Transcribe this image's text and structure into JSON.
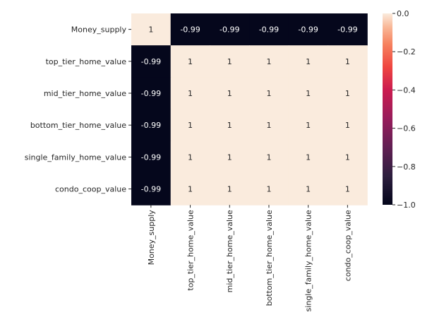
{
  "chart_data": {
    "type": "heatmap",
    "title": "",
    "xlabel": "",
    "ylabel": "",
    "row_labels": [
      "Money_supply",
      "top_tier_home_value",
      "mid_tier_home_value",
      "bottom_tier_home_value",
      "single_family_home_value",
      "condo_coop_value"
    ],
    "col_labels": [
      "Money_supply",
      "top_tier_home_value",
      "mid_tier_home_value",
      "bottom_tier_home_value",
      "single_family_home_value",
      "condo_coop_value"
    ],
    "values": [
      [
        1,
        -0.99,
        -0.99,
        -0.99,
        -0.99,
        -0.99
      ],
      [
        -0.99,
        1,
        1,
        1,
        1,
        1
      ],
      [
        -0.99,
        1,
        1,
        1,
        1,
        1
      ],
      [
        -0.99,
        1,
        1,
        1,
        1,
        1
      ],
      [
        -0.99,
        1,
        1,
        1,
        1,
        1
      ],
      [
        -0.99,
        1,
        1,
        1,
        1,
        1
      ]
    ],
    "annotations": [
      [
        "1",
        "-0.99",
        "-0.99",
        "-0.99",
        "-0.99",
        "-0.99"
      ],
      [
        "-0.99",
        "1",
        "1",
        "1",
        "1",
        "1"
      ],
      [
        "-0.99",
        "1",
        "1",
        "1",
        "1",
        "1"
      ],
      [
        "-0.99",
        "1",
        "1",
        "1",
        "1",
        "1"
      ],
      [
        "-0.99",
        "1",
        "1",
        "1",
        "1",
        "1"
      ],
      [
        "-0.99",
        "1",
        "1",
        "1",
        "1",
        "1"
      ]
    ],
    "colorbar": {
      "range": [
        -1.0,
        0.0
      ],
      "ticks": [
        0.0,
        -0.2,
        -0.4,
        -0.6,
        -0.8,
        -1.0
      ],
      "tick_labels": [
        "0.0",
        "−0.2",
        "−0.4",
        "−0.6",
        "−0.8",
        "−1.0"
      ],
      "low_color": "#03051a",
      "high_color": "#faebdd"
    }
  }
}
